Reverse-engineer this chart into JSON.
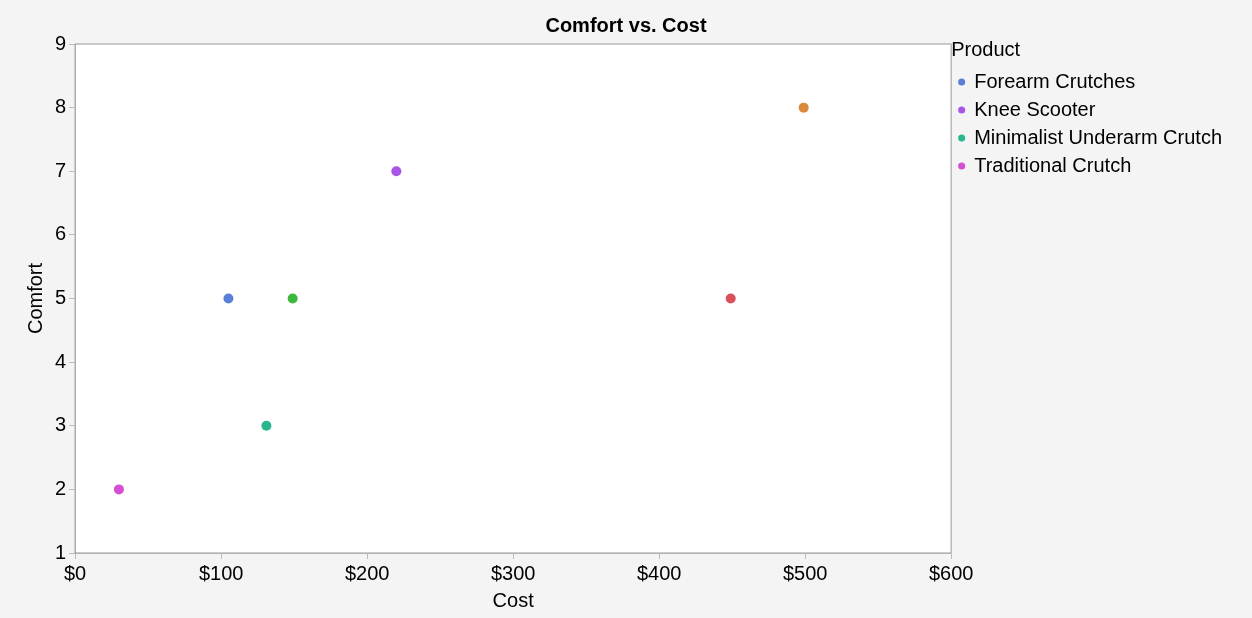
{
  "chart_data": {
    "type": "scatter",
    "title": "Comfort vs. Cost",
    "xlabel": "Cost",
    "ylabel": "Comfort",
    "legend_title": "Product",
    "legend": "right",
    "grid": false,
    "marker": "circle",
    "xlim": [
      0,
      600
    ],
    "xticks": [
      {
        "value": 0,
        "label": "$0"
      },
      {
        "value": 100,
        "label": "$100"
      },
      {
        "value": 200,
        "label": "$200"
      },
      {
        "value": 300,
        "label": "$300"
      },
      {
        "value": 400,
        "label": "$400"
      },
      {
        "value": 500,
        "label": "$500"
      },
      {
        "value": 600,
        "label": "$600"
      }
    ],
    "ylim": [
      1,
      9
    ],
    "yticks": [
      1,
      2,
      3,
      4,
      5,
      6,
      7,
      8,
      9
    ],
    "series": [
      {
        "name": "Forearm Crutches",
        "color": "#5b7fd6",
        "x": [
          105
        ],
        "values": [
          5
        ]
      },
      {
        "color": "#d94f5c",
        "x": [
          449
        ],
        "values": [
          5
        ]
      },
      {
        "color": "#3cb83c",
        "x": [
          149
        ],
        "values": [
          5
        ]
      },
      {
        "name": "Knee Scooter",
        "color": "#a855e8",
        "x": [
          220
        ],
        "values": [
          7
        ]
      },
      {
        "color": "#d98a3c",
        "x": [
          499
        ],
        "values": [
          8
        ]
      },
      {
        "name": "Minimalist Underarm Crutch",
        "color": "#2bb58f",
        "x": [
          131
        ],
        "values": [
          3
        ]
      },
      {
        "name": "Traditional Crutch",
        "color": "#d44fd4",
        "x": [
          30
        ],
        "values": [
          2
        ]
      }
    ]
  }
}
